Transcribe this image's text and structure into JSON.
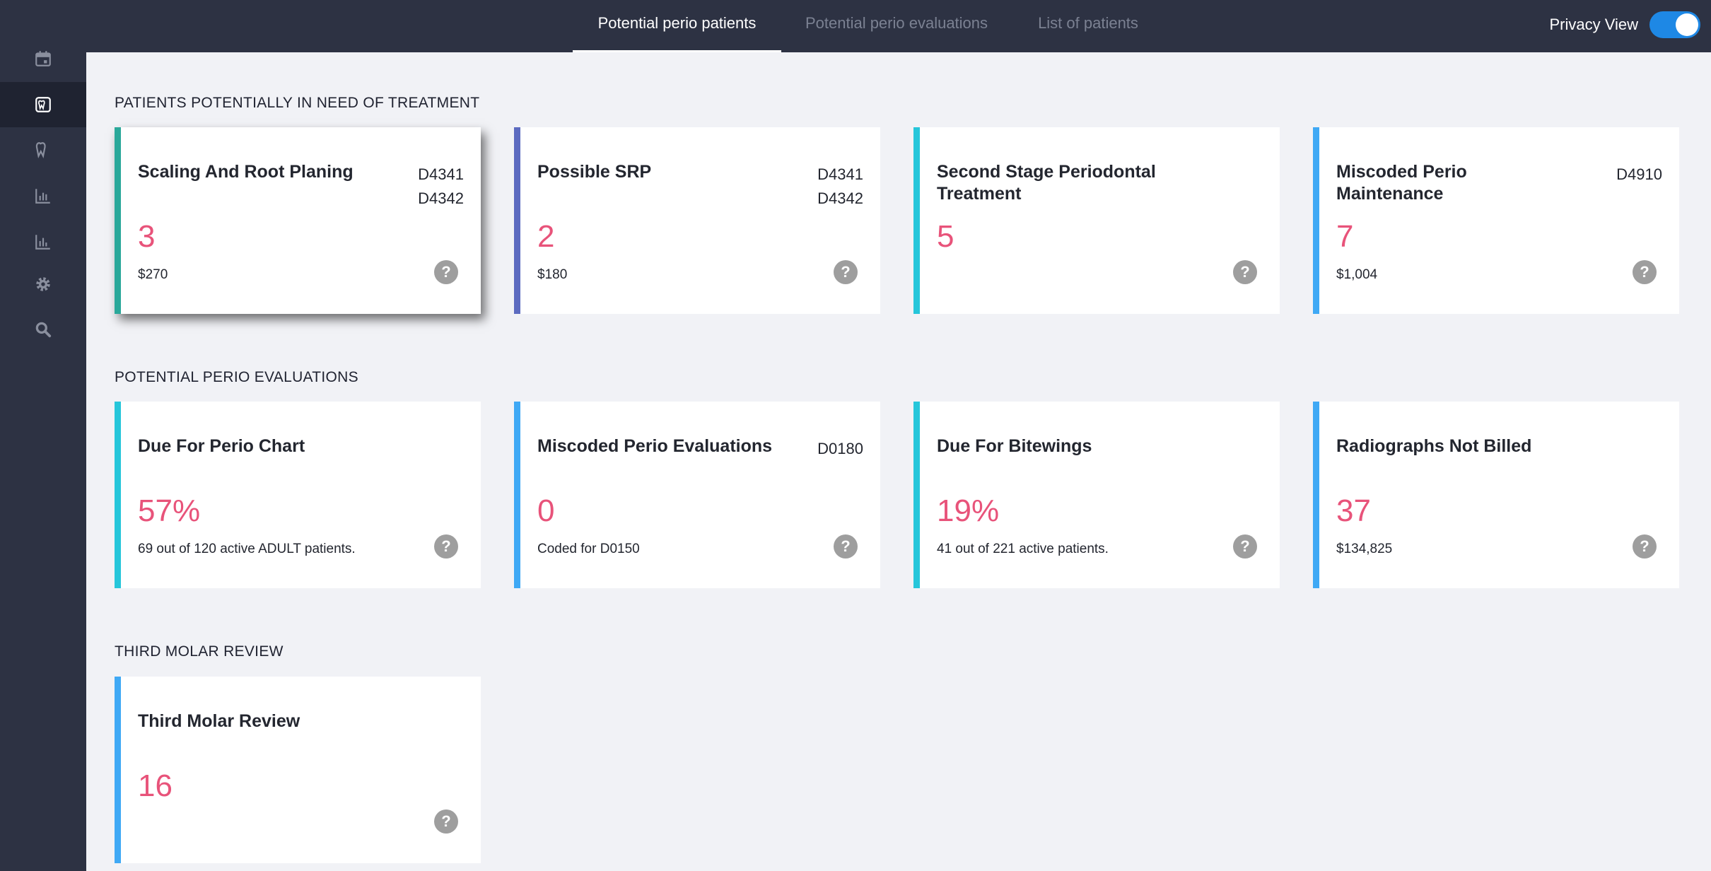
{
  "tabs": [
    {
      "label": "Potential perio patients",
      "active": true
    },
    {
      "label": "Potential perio evaluations",
      "active": false
    },
    {
      "label": "List of patients",
      "active": false
    }
  ],
  "privacy": {
    "label": "Privacy View",
    "enabled": true
  },
  "sidebar": {
    "items": [
      {
        "icon": "calendar-icon"
      },
      {
        "icon": "tooth-chart-icon",
        "active": true
      },
      {
        "icon": "tooth-icon"
      },
      {
        "icon": "bar-chart-icon"
      },
      {
        "icon": "bar-chart-icon"
      },
      {
        "icon": "gear-icon"
      },
      {
        "icon": "search-icon"
      }
    ]
  },
  "colors": {
    "accent_value": "#e8537a",
    "teal": "#2aa89a",
    "indigo": "#5c6bc0",
    "cyan": "#26c6da",
    "blue": "#3fa9f5"
  },
  "sections": [
    {
      "title": "PATIENTS POTENTIALLY IN NEED OF TREATMENT",
      "cards": [
        {
          "title": "Scaling And Root Planing",
          "codes": [
            "D4341",
            "D4342"
          ],
          "value": "3",
          "sub": "$270"
        },
        {
          "title": "Possible SRP",
          "codes": [
            "D4341",
            "D4342"
          ],
          "value": "2",
          "sub": "$180"
        },
        {
          "title": "Second Stage Periodontal Treatment",
          "codes": [],
          "value": "5",
          "sub": ""
        },
        {
          "title": "Miscoded Perio Maintenance",
          "codes": [
            "D4910"
          ],
          "value": "7",
          "sub": "$1,004"
        }
      ]
    },
    {
      "title": "POTENTIAL PERIO EVALUATIONS",
      "cards": [
        {
          "title": "Due For Perio Chart",
          "codes": [],
          "value": "57%",
          "sub": "69 out of 120 active ADULT patients."
        },
        {
          "title": "Miscoded Perio Evaluations",
          "codes": [
            "D0180"
          ],
          "value": "0",
          "sub": "Coded for D0150"
        },
        {
          "title": "Due For Bitewings",
          "codes": [],
          "value": "19%",
          "sub": "41 out of 221 active patients."
        },
        {
          "title": "Radiographs Not Billed",
          "codes": [],
          "value": "37",
          "sub": "$134,825"
        }
      ]
    },
    {
      "title": "THIRD MOLAR REVIEW",
      "cards": [
        {
          "title": "Third Molar Review",
          "codes": [],
          "value": "16",
          "sub": ""
        }
      ]
    }
  ],
  "help_glyph": "?"
}
